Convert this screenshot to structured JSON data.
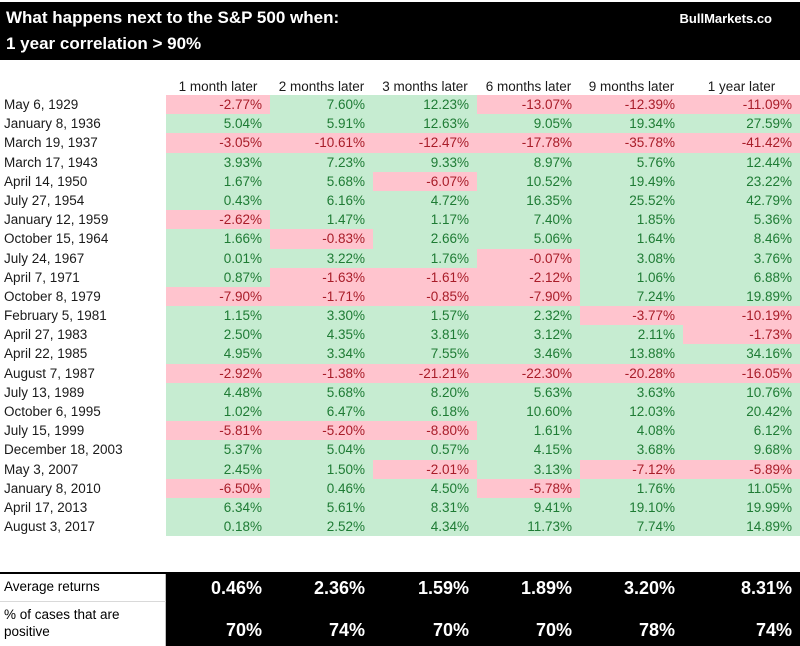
{
  "header": {
    "title_line1": "What happens next to the S&P 500 when:",
    "title_line2": "1 year correlation > 90%",
    "brand": "BullMarkets.co"
  },
  "colors": {
    "positive_bg": "#c6ecd1",
    "positive_text": "#1e7b34",
    "negative_bg": "#ffc4ce",
    "negative_text": "#a81c28",
    "header_bg": "#000000",
    "header_text": "#ffffff"
  },
  "chart_data": {
    "type": "table",
    "title": "What happens next to the S&P 500 when: 1 year correlation > 90%",
    "columns": [
      "1 month later",
      "2 months later",
      "3 months later",
      "6 months later",
      "9 months later",
      "1 year later"
    ],
    "rows": [
      {
        "date": "May 6, 1929",
        "values": [
          "-2.77%",
          "7.60%",
          "12.23%",
          "-13.07%",
          "-12.39%",
          "-11.09%"
        ]
      },
      {
        "date": "January 8, 1936",
        "values": [
          "5.04%",
          "5.91%",
          "12.63%",
          "9.05%",
          "19.34%",
          "27.59%"
        ]
      },
      {
        "date": "March 19, 1937",
        "values": [
          "-3.05%",
          "-10.61%",
          "-12.47%",
          "-17.78%",
          "-35.78%",
          "-41.42%"
        ]
      },
      {
        "date": "March 17, 1943",
        "values": [
          "3.93%",
          "7.23%",
          "9.33%",
          "8.97%",
          "5.76%",
          "12.44%"
        ]
      },
      {
        "date": "April 14, 1950",
        "values": [
          "1.67%",
          "5.68%",
          "-6.07%",
          "10.52%",
          "19.49%",
          "23.22%"
        ]
      },
      {
        "date": "July 27, 1954",
        "values": [
          "0.43%",
          "6.16%",
          "4.72%",
          "16.35%",
          "25.52%",
          "42.79%"
        ]
      },
      {
        "date": "January 12, 1959",
        "values": [
          "-2.62%",
          "1.47%",
          "1.17%",
          "7.40%",
          "1.85%",
          "5.36%"
        ]
      },
      {
        "date": "October 15, 1964",
        "values": [
          "1.66%",
          "-0.83%",
          "2.66%",
          "5.06%",
          "1.64%",
          "8.46%"
        ]
      },
      {
        "date": "July 24, 1967",
        "values": [
          "0.01%",
          "3.22%",
          "1.76%",
          "-0.07%",
          "3.08%",
          "3.76%"
        ]
      },
      {
        "date": "April 7, 1971",
        "values": [
          "0.87%",
          "-1.63%",
          "-1.61%",
          "-2.12%",
          "1.06%",
          "6.88%"
        ]
      },
      {
        "date": "October 8, 1979",
        "values": [
          "-7.90%",
          "-1.71%",
          "-0.85%",
          "-7.90%",
          "7.24%",
          "19.89%"
        ]
      },
      {
        "date": "February 5, 1981",
        "values": [
          "1.15%",
          "3.30%",
          "1.57%",
          "2.32%",
          "-3.77%",
          "-10.19%"
        ]
      },
      {
        "date": "April 27, 1983",
        "values": [
          "2.50%",
          "4.35%",
          "3.81%",
          "3.12%",
          "2.11%",
          "-1.73%"
        ]
      },
      {
        "date": "April 22, 1985",
        "values": [
          "4.95%",
          "3.34%",
          "7.55%",
          "3.46%",
          "13.88%",
          "34.16%"
        ]
      },
      {
        "date": "August 7, 1987",
        "values": [
          "-2.92%",
          "-1.38%",
          "-21.21%",
          "-22.30%",
          "-20.28%",
          "-16.05%"
        ]
      },
      {
        "date": "July 13, 1989",
        "values": [
          "4.48%",
          "5.68%",
          "8.20%",
          "5.63%",
          "3.63%",
          "10.76%"
        ]
      },
      {
        "date": "October 6, 1995",
        "values": [
          "1.02%",
          "6.47%",
          "6.18%",
          "10.60%",
          "12.03%",
          "20.42%"
        ]
      },
      {
        "date": "July 15, 1999",
        "values": [
          "-5.81%",
          "-5.20%",
          "-8.80%",
          "1.61%",
          "4.08%",
          "6.12%"
        ]
      },
      {
        "date": "December 18, 2003",
        "values": [
          "5.37%",
          "5.04%",
          "0.57%",
          "4.15%",
          "3.68%",
          "9.68%"
        ]
      },
      {
        "date": "May 3, 2007",
        "values": [
          "2.45%",
          "1.50%",
          "-2.01%",
          "3.13%",
          "-7.12%",
          "-5.89%"
        ]
      },
      {
        "date": "January 8, 2010",
        "values": [
          "-6.50%",
          "0.46%",
          "4.50%",
          "-5.78%",
          "1.76%",
          "11.05%"
        ]
      },
      {
        "date": "April 17, 2013",
        "values": [
          "6.34%",
          "5.61%",
          "8.31%",
          "9.41%",
          "19.10%",
          "19.99%"
        ]
      },
      {
        "date": "August 3, 2017",
        "values": [
          "0.18%",
          "2.52%",
          "4.34%",
          "11.73%",
          "7.74%",
          "14.89%"
        ]
      }
    ],
    "summary": {
      "average_label": "Average returns",
      "average_values": [
        "0.46%",
        "2.36%",
        "1.59%",
        "1.89%",
        "3.20%",
        "8.31%"
      ],
      "positive_label": "% of cases that are positive",
      "positive_values": [
        "70%",
        "74%",
        "70%",
        "70%",
        "78%",
        "74%"
      ]
    }
  }
}
